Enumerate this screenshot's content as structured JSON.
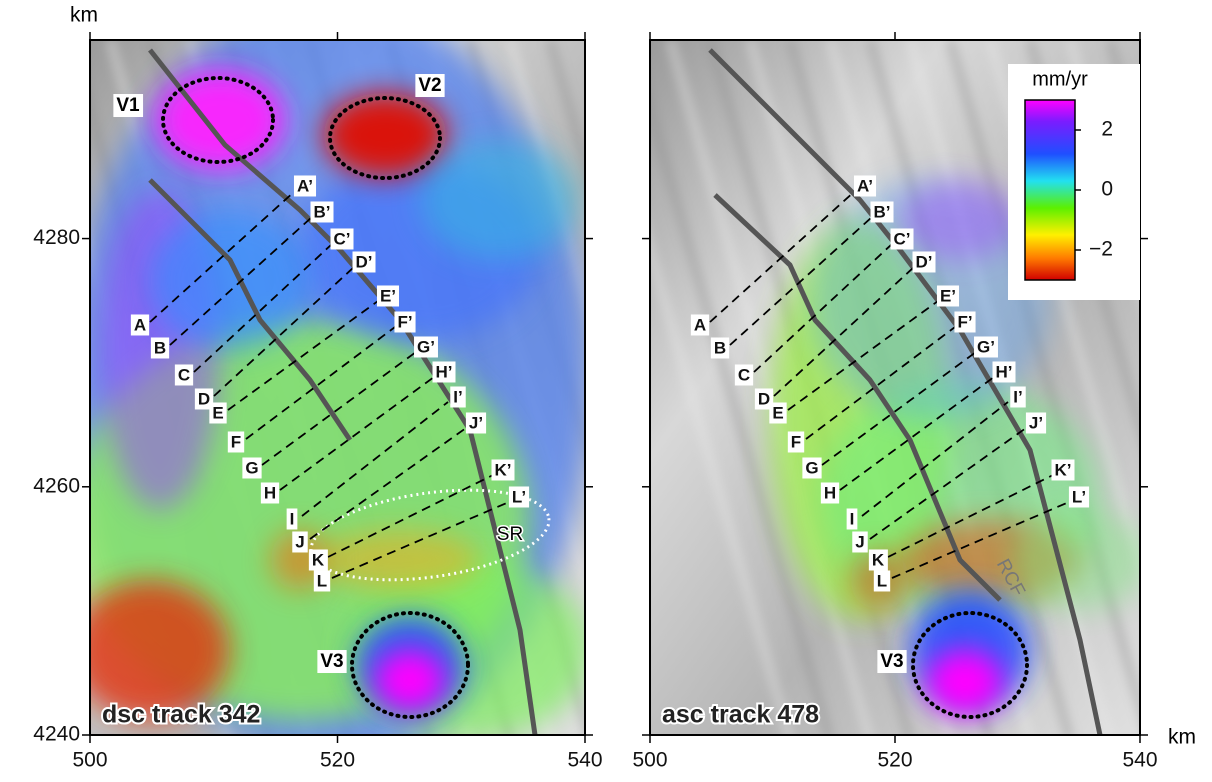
{
  "figure": {
    "x_unit": "km",
    "y_unit": "km",
    "panels": [
      {
        "label": "dsc track 342",
        "xlim": [
          500,
          540
        ],
        "ylim": [
          4240,
          4296
        ],
        "xticks": [
          500,
          520,
          540
        ],
        "yticks": [
          4240,
          4260,
          4280
        ],
        "profiles": [
          [
            "A",
            "A’"
          ],
          [
            "B",
            "B’"
          ],
          [
            "C",
            "C’"
          ],
          [
            "D",
            "D’"
          ],
          [
            "E",
            "E’"
          ],
          [
            "F",
            "F’"
          ],
          [
            "G",
            "G’"
          ],
          [
            "H",
            "H’"
          ],
          [
            "I",
            "I’"
          ],
          [
            "J",
            "J’"
          ],
          [
            "K",
            "K’"
          ],
          [
            "L",
            "L’"
          ]
        ],
        "features": [
          "V1",
          "V2",
          "V3",
          "SR"
        ]
      },
      {
        "label": "asc track 478",
        "xlim": [
          500,
          540
        ],
        "ylim": [
          4240,
          4296
        ],
        "xticks": [
          500,
          520,
          540
        ],
        "yticks": [
          4240,
          4260,
          4280
        ],
        "profiles": [
          [
            "A",
            "A’"
          ],
          [
            "B",
            "B’"
          ],
          [
            "C",
            "C’"
          ],
          [
            "D",
            "D’"
          ],
          [
            "E",
            "E’"
          ],
          [
            "F",
            "F’"
          ],
          [
            "G",
            "G’"
          ],
          [
            "H",
            "H’"
          ],
          [
            "I",
            "I’"
          ],
          [
            "J",
            "J’"
          ],
          [
            "K",
            "K’"
          ],
          [
            "L",
            "L’"
          ]
        ],
        "features": [
          "V3",
          "RCF"
        ]
      }
    ],
    "colorbar": {
      "title": "mm/yr",
      "lim": [
        -3,
        3
      ],
      "ticks": [
        2,
        0,
        {
          "value": -2,
          "label": "−2"
        }
      ]
    }
  }
}
